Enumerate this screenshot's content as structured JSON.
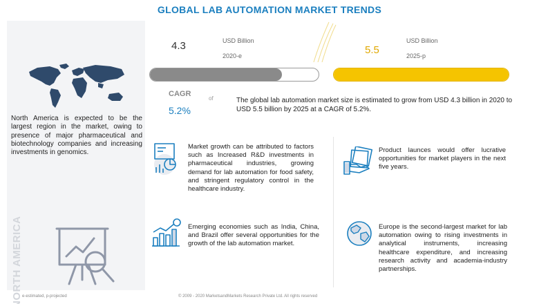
{
  "title": "GLOBAL LAB AUTOMATION MARKET TRENDS",
  "left": {
    "text": "North America is expected to be the largest region in the market, owing to presence of major pharmaceutical and biotechnology companies and increasing investments in genomics.",
    "vertical_label": "NORTH AMERICA"
  },
  "market": {
    "unit": "USD Billion",
    "value_2020": "4.3",
    "year_2020": "2020-e",
    "value_2025": "5.5",
    "year_2025": "2025-p",
    "cagr_label": "CAGR",
    "cagr_value": "5.2%",
    "cagr_of": "of",
    "summary": "The global lab automation market size is estimated to grow from USD 4.3 billion in 2020 to USD 5.5 billion by 2025 at a CAGR of 5.2%."
  },
  "chart_data": {
    "type": "bar",
    "categories": [
      "2020-e",
      "2025-p"
    ],
    "values": [
      4.3,
      5.5
    ],
    "ylabel": "USD Billion",
    "xlim": [
      0,
      5.5
    ],
    "colors": [
      "#8a8a8a",
      "#f5c400"
    ]
  },
  "blocks": {
    "growth": "Market growth can be attributed to factors such as Increased R&D investments in pharmaceutical industries, growing demand for lab automation for food safety, and stringent regulatory control in the healthcare industry.",
    "product": "Product launces would offer lucrative opportunities for market players in the next five years.",
    "emerging": "Emerging economies such as India, China, and Brazil offer several opportunities for the growth of the lab automation market.",
    "europe": "Europe is the second-largest market for lab automation owing to rising investments in analytical instruments, increasing healthcare expenditure, and increasing research activity and academia-industry partnerships."
  },
  "footer": {
    "left": "e-estimated, p-projected",
    "right": "© 2009 - 2020 MarketsandMarkets Research Private Ltd. All rights reserved"
  },
  "colors": {
    "title": "#1b7fbf",
    "accent_blue": "#1b7fbf",
    "bar_2020": "#8a8a8a",
    "bar_2025": "#f5c400",
    "map": "#2f4a6b"
  },
  "icons": [
    "world-map-icon",
    "chart-magnifier-icon",
    "analytics-icon",
    "money-hand-icon",
    "growth-chart-icon",
    "globe-icon"
  ]
}
